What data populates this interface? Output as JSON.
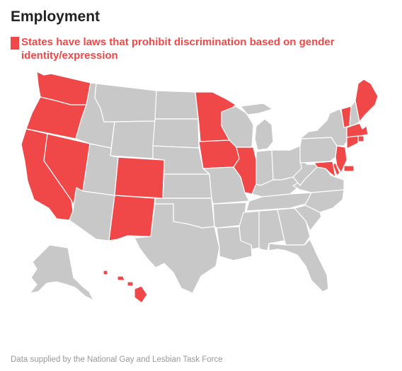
{
  "title": "Employment",
  "legend": {
    "label": "States have laws that prohibit discrimination based on gender identity/expression"
  },
  "source": "Data supplied by the National Gay and Lesbian Task Force",
  "colors": {
    "protected": "#f04848",
    "other": "#c8c8c8",
    "border": "#ffffff"
  },
  "protected_states": [
    "WA",
    "OR",
    "CA",
    "NV",
    "CO",
    "NM",
    "MN",
    "IA",
    "IL",
    "ME",
    "VT",
    "MA",
    "RI",
    "CT",
    "NJ",
    "DE",
    "MD",
    "DC",
    "HI"
  ],
  "other_states": [
    "ID",
    "MT",
    "WY",
    "UT",
    "AZ",
    "ND",
    "SD",
    "NE",
    "KS",
    "OK",
    "TX",
    "MO",
    "AR",
    "LA",
    "WI",
    "MI",
    "IN",
    "OH",
    "KY",
    "TN",
    "MS",
    "AL",
    "GA",
    "FL",
    "SC",
    "NC",
    "VA",
    "WV",
    "PA",
    "NY",
    "NH",
    "AK"
  ]
}
